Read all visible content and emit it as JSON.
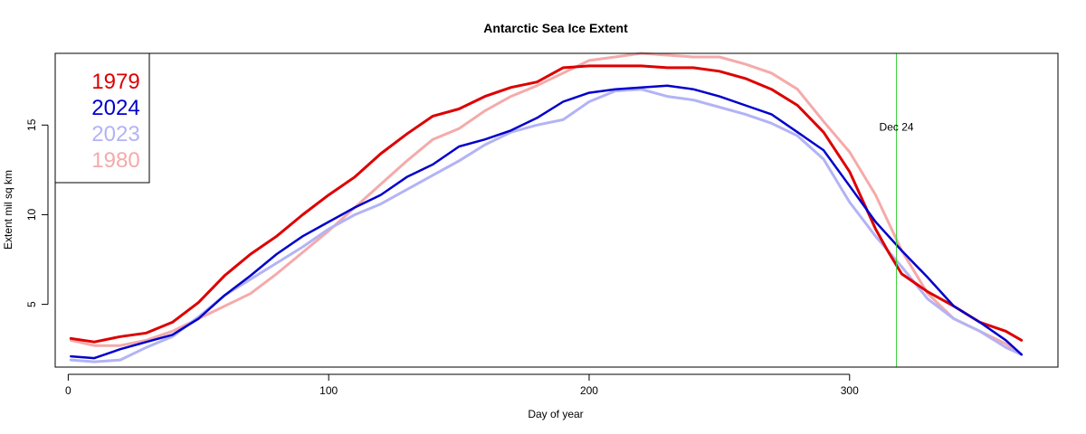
{
  "chart_data": {
    "type": "line",
    "title": "Antarctic Sea Ice Extent",
    "xlabel": "Day of year",
    "ylabel": "Extent mil sq km",
    "xlim": [
      -5,
      380
    ],
    "ylim": [
      1.5,
      19.0
    ],
    "xticks": [
      0,
      100,
      200,
      300
    ],
    "yticks": [
      5,
      10,
      15
    ],
    "legend_position": "top-left",
    "annotation": {
      "label": "Dec 24",
      "x": 318,
      "y": 14.9,
      "line_color": "#33cc33"
    },
    "series": [
      {
        "name": "1980",
        "color": "#f5aaaa",
        "width": 3,
        "x": [
          1,
          10,
          20,
          30,
          40,
          50,
          60,
          70,
          80,
          90,
          100,
          110,
          120,
          130,
          140,
          150,
          160,
          170,
          180,
          190,
          200,
          210,
          220,
          230,
          240,
          250,
          260,
          270,
          280,
          290,
          300,
          310,
          320,
          330,
          340,
          350,
          360,
          366
        ],
        "y": [
          3.0,
          2.7,
          2.7,
          3.0,
          3.5,
          4.2,
          4.9,
          5.6,
          6.7,
          7.9,
          9.1,
          10.4,
          11.7,
          13.0,
          14.2,
          14.8,
          15.8,
          16.6,
          17.2,
          17.9,
          18.6,
          18.8,
          19.0,
          18.9,
          18.8,
          18.8,
          18.4,
          17.9,
          17.0,
          15.2,
          13.5,
          11.1,
          8.0,
          5.6,
          4.2,
          3.5,
          2.8,
          2.2
        ]
      },
      {
        "name": "2023",
        "color": "#b3b3f5",
        "width": 3,
        "x": [
          1,
          10,
          20,
          30,
          40,
          50,
          60,
          70,
          80,
          90,
          100,
          110,
          120,
          130,
          140,
          150,
          160,
          170,
          180,
          190,
          200,
          210,
          220,
          230,
          240,
          250,
          260,
          270,
          280,
          290,
          300,
          310,
          320,
          330,
          340,
          350,
          360,
          366
        ],
        "y": [
          1.9,
          1.8,
          1.9,
          2.6,
          3.2,
          4.3,
          5.5,
          6.4,
          7.3,
          8.2,
          9.2,
          10.0,
          10.6,
          11.4,
          12.2,
          13.0,
          13.9,
          14.6,
          15.0,
          15.3,
          16.3,
          16.9,
          17.0,
          16.6,
          16.4,
          16.0,
          15.6,
          15.1,
          14.4,
          13.1,
          10.7,
          8.8,
          7.1,
          5.3,
          4.2,
          3.5,
          2.6,
          2.2
        ]
      },
      {
        "name": "1979",
        "color": "#dd0000",
        "width": 3,
        "x": [
          1,
          10,
          20,
          30,
          40,
          50,
          60,
          70,
          80,
          90,
          100,
          110,
          120,
          130,
          140,
          150,
          160,
          170,
          180,
          190,
          200,
          210,
          220,
          230,
          240,
          250,
          260,
          270,
          280,
          290,
          300,
          310,
          315,
          320,
          330,
          340,
          350,
          360,
          366
        ],
        "y": [
          3.1,
          2.9,
          3.2,
          3.4,
          4.0,
          5.1,
          6.6,
          7.8,
          8.8,
          10.0,
          11.1,
          12.1,
          13.4,
          14.5,
          15.5,
          15.9,
          16.6,
          17.1,
          17.4,
          18.2,
          18.3,
          18.3,
          18.3,
          18.2,
          18.2,
          18.0,
          17.6,
          17.0,
          16.1,
          14.6,
          12.4,
          9.2,
          7.9,
          6.7,
          5.7,
          4.9,
          4.0,
          3.5,
          3.0
        ]
      },
      {
        "name": "2024",
        "color": "#0000cc",
        "width": 2.5,
        "x": [
          1,
          10,
          20,
          30,
          40,
          50,
          60,
          70,
          80,
          90,
          100,
          110,
          120,
          130,
          140,
          150,
          160,
          170,
          180,
          190,
          200,
          210,
          220,
          230,
          240,
          250,
          260,
          270,
          280,
          290,
          300,
          310,
          320,
          330,
          340,
          350,
          360,
          366
        ],
        "y": [
          2.1,
          2.0,
          2.5,
          2.9,
          3.3,
          4.2,
          5.5,
          6.6,
          7.8,
          8.8,
          9.6,
          10.4,
          11.1,
          12.1,
          12.8,
          13.8,
          14.2,
          14.7,
          15.4,
          16.3,
          16.8,
          17.0,
          17.1,
          17.2,
          17.0,
          16.6,
          16.1,
          15.6,
          14.6,
          13.6,
          11.6,
          9.6,
          8.0,
          6.5,
          4.9,
          4.0,
          3.0,
          2.2
        ]
      }
    ],
    "legend_entries": [
      {
        "label": "1979",
        "color": "#dd0000"
      },
      {
        "label": "2024",
        "color": "#0000cc"
      },
      {
        "label": "2023",
        "color": "#b3b3f5"
      },
      {
        "label": "1980",
        "color": "#f5aaaa"
      }
    ]
  }
}
